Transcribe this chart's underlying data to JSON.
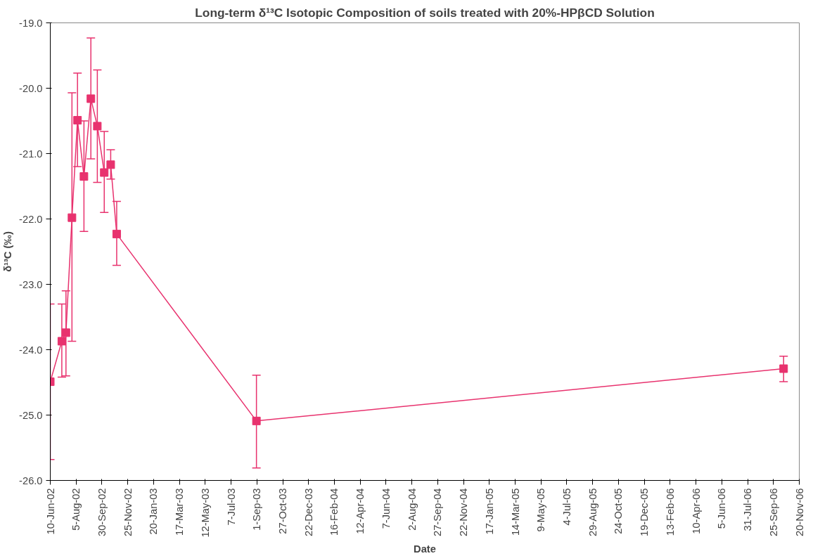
{
  "chart_data": {
    "type": "line",
    "title": "Long-term δ¹³C Isotopic Composition of soils treated with 20%-HPβCD Solution",
    "xlabel": "Date",
    "ylabel": "δ¹³C (‰)",
    "x": [
      "2002-06-10",
      "2002-07-05",
      "2002-07-14",
      "2002-07-27",
      "2002-08-08",
      "2002-08-22",
      "2002-09-06",
      "2002-09-20",
      "2002-10-05",
      "2002-10-19",
      "2002-11-01",
      "2003-08-31",
      "2006-10-17"
    ],
    "series": [
      {
        "color": "#e8326e",
        "values": [
          -24.49,
          -23.87,
          -23.74,
          -21.98,
          -20.49,
          -21.35,
          -20.16,
          -20.58,
          -21.29,
          -21.17,
          -22.23,
          -25.09,
          -24.29
        ],
        "errors": [
          [
            -25.68,
            -23.3
          ],
          [
            -24.42,
            -23.3
          ],
          [
            -24.4,
            -23.1
          ],
          [
            -23.87,
            -20.07
          ],
          [
            -21.2,
            -19.77
          ],
          [
            -22.19,
            -20.5
          ],
          [
            -21.08,
            -19.23
          ],
          [
            -21.44,
            -19.72
          ],
          [
            -21.9,
            -20.66
          ],
          [
            -21.39,
            -20.94
          ],
          [
            -22.71,
            -21.73
          ],
          [
            -25.81,
            -24.39
          ],
          [
            -24.49,
            -24.1
          ]
        ]
      }
    ],
    "marker": "square",
    "line_style": "solid",
    "grid": false,
    "xlim": [
      "2002-06-10",
      "2006-11-20"
    ],
    "xticks": [
      {
        "value": "2002-06-10",
        "label": "10-Jun-02"
      },
      {
        "value": "2002-08-05",
        "label": "5-Aug-02"
      },
      {
        "value": "2002-09-30",
        "label": "30-Sep-02"
      },
      {
        "value": "2002-11-25",
        "label": "25-Nov-02"
      },
      {
        "value": "2003-01-20",
        "label": "20-Jan-03"
      },
      {
        "value": "2003-03-17",
        "label": "17-Mar-03"
      },
      {
        "value": "2003-05-12",
        "label": "12-May-03"
      },
      {
        "value": "2003-07-07",
        "label": "7-Jul-03"
      },
      {
        "value": "2003-09-01",
        "label": "1-Sep-03"
      },
      {
        "value": "2003-10-27",
        "label": "27-Oct-03"
      },
      {
        "value": "2003-12-22",
        "label": "22-Dec-03"
      },
      {
        "value": "2004-02-16",
        "label": "16-Feb-04"
      },
      {
        "value": "2004-04-12",
        "label": "12-Apr-04"
      },
      {
        "value": "2004-06-07",
        "label": "7-Jun-04"
      },
      {
        "value": "2004-08-02",
        "label": "2-Aug-04"
      },
      {
        "value": "2004-09-27",
        "label": "27-Sep-04"
      },
      {
        "value": "2004-11-22",
        "label": "22-Nov-04"
      },
      {
        "value": "2005-01-17",
        "label": "17-Jan-05"
      },
      {
        "value": "2005-03-14",
        "label": "14-Mar-05"
      },
      {
        "value": "2005-05-09",
        "label": "9-May-05"
      },
      {
        "value": "2005-07-04",
        "label": "4-Jul-05"
      },
      {
        "value": "2005-08-29",
        "label": "29-Aug-05"
      },
      {
        "value": "2005-10-24",
        "label": "24-Oct-05"
      },
      {
        "value": "2005-12-19",
        "label": "19-Dec-05"
      },
      {
        "value": "2006-02-13",
        "label": "13-Feb-06"
      },
      {
        "value": "2006-04-10",
        "label": "10-Apr-06"
      },
      {
        "value": "2006-06-05",
        "label": "5-Jun-06"
      },
      {
        "value": "2006-07-31",
        "label": "31-Jul-06"
      },
      {
        "value": "2006-09-25",
        "label": "25-Sep-06"
      },
      {
        "value": "2006-11-20",
        "label": "20-Nov-06"
      }
    ],
    "ylim": [
      -26,
      -19
    ],
    "yticks": [
      {
        "value": -26,
        "label": "-26.0"
      },
      {
        "value": -25,
        "label": "-25.0"
      },
      {
        "value": -24,
        "label": "-24.0"
      },
      {
        "value": -23,
        "label": "-23.0"
      },
      {
        "value": -22,
        "label": "-22.0"
      },
      {
        "value": -21,
        "label": "-21.0"
      },
      {
        "value": -20,
        "label": "-20.0"
      },
      {
        "value": -19,
        "label": "-19.0"
      }
    ]
  }
}
